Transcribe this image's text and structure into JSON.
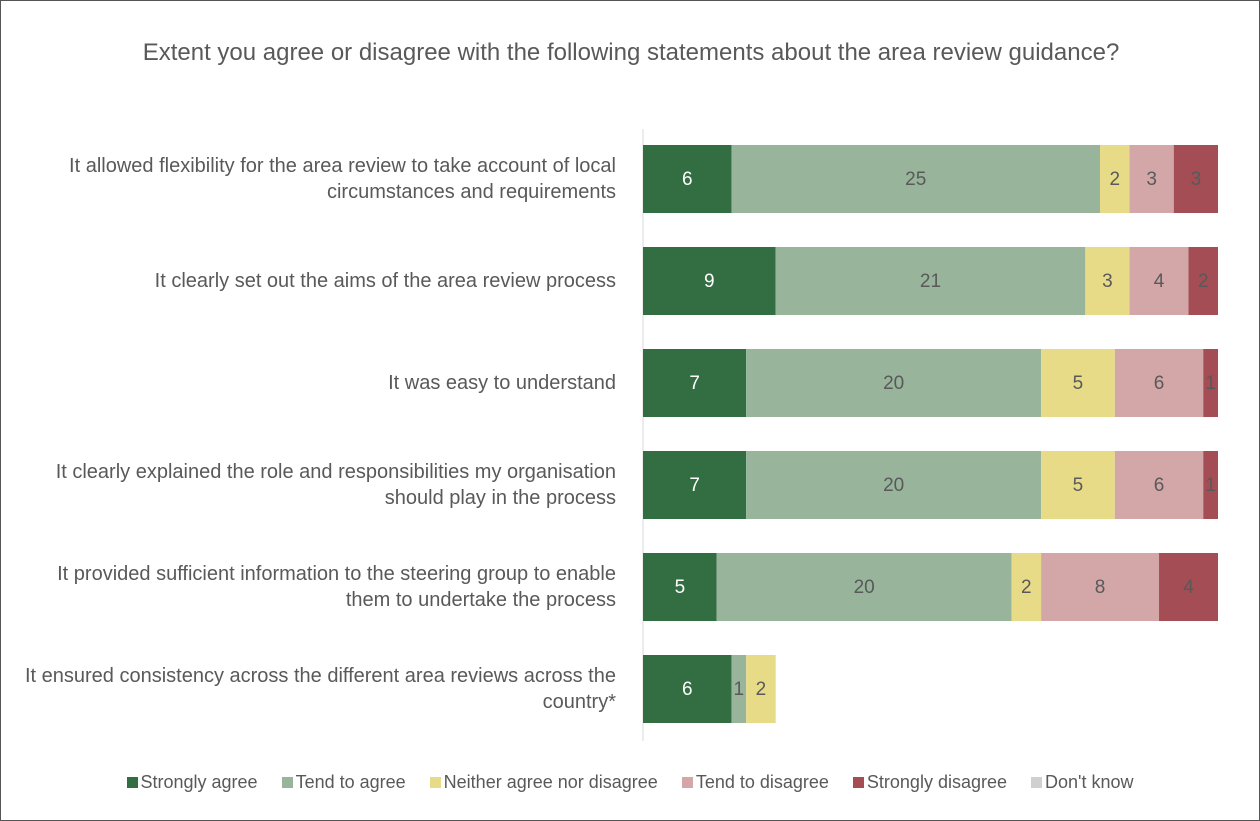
{
  "chart_data": {
    "type": "bar",
    "orientation": "horizontal",
    "stacked": true,
    "title": "Extent you agree or disagree with the following statements about the area review guidance?",
    "categories": [
      "It allowed flexibility for the area review to take account of local circumstances and requirements",
      "It clearly set out the aims of the area review process",
      "It was easy to understand",
      "It clearly explained the role and responsibilities my organisation should play in the process",
      "It provided sufficient information to the steering group to enable them to undertake the process",
      "It ensured consistency across the different area reviews across the country*"
    ],
    "series": [
      {
        "name": "Strongly agree",
        "color": "#336e42",
        "values": [
          6,
          9,
          7,
          7,
          5,
          6
        ]
      },
      {
        "name": "Tend to agree",
        "color": "#98b59c",
        "values": [
          25,
          21,
          20,
          20,
          20,
          1
        ]
      },
      {
        "name": "Neither agree nor disagree",
        "color": "#e8db87",
        "values": [
          2,
          3,
          5,
          5,
          2,
          2
        ]
      },
      {
        "name": "Tend to disagree",
        "color": "#d3a7a8",
        "values": [
          3,
          4,
          6,
          6,
          8,
          0
        ]
      },
      {
        "name": "Strongly disagree",
        "color": "#a44d54",
        "values": [
          3,
          2,
          1,
          1,
          4,
          0
        ]
      },
      {
        "name": "Don't know",
        "color": "#d0d0d0",
        "values": [
          0,
          0,
          0,
          0,
          0,
          0
        ]
      }
    ],
    "legend": "bottom"
  }
}
